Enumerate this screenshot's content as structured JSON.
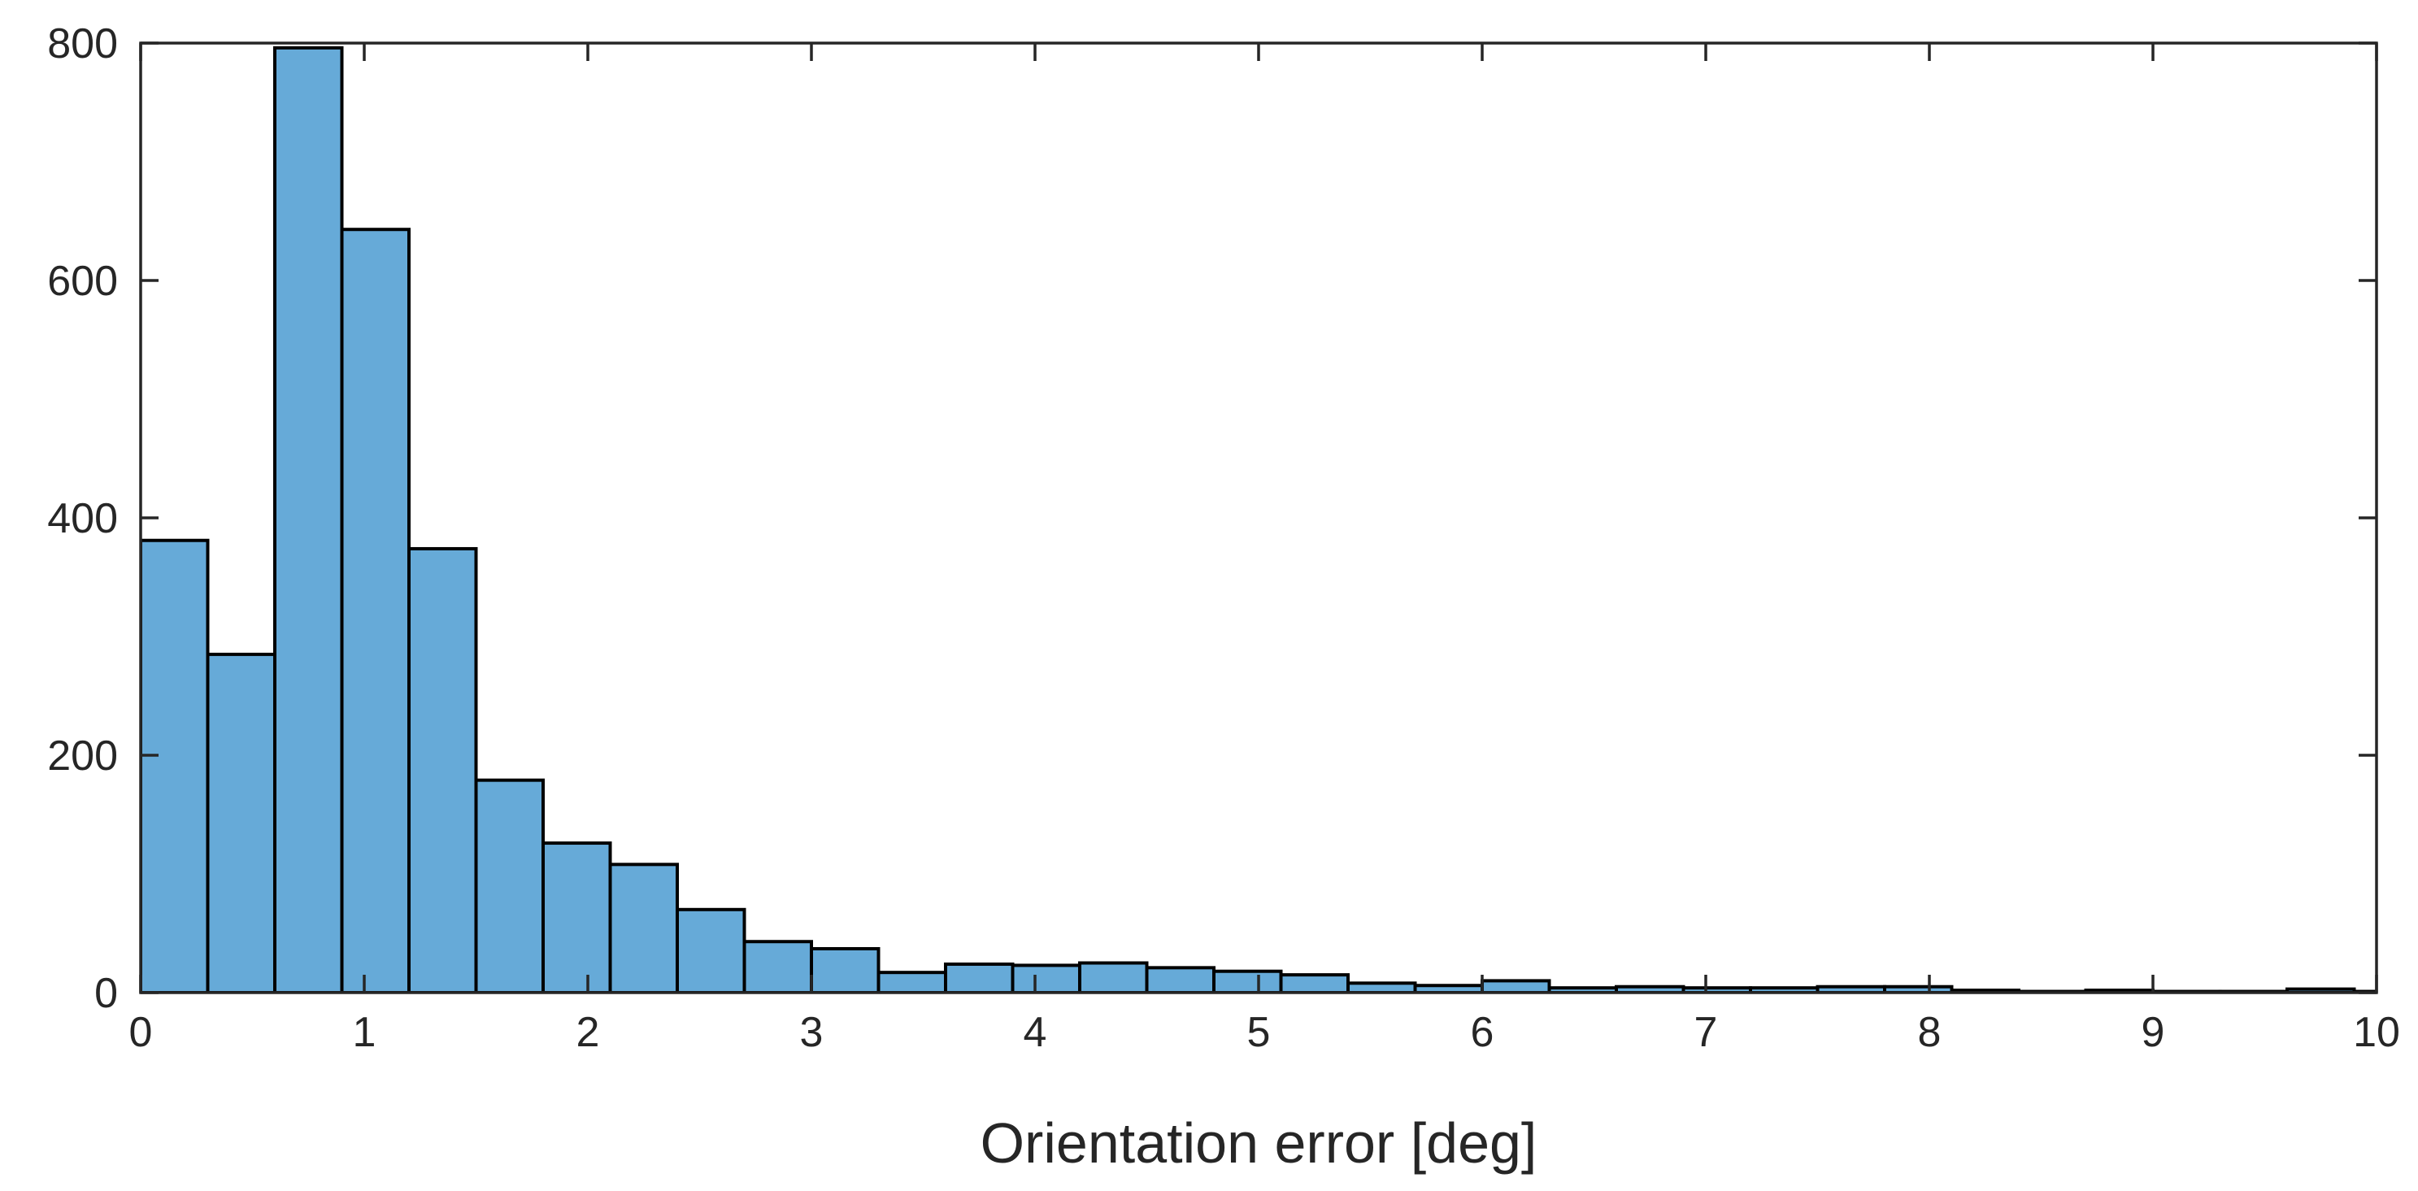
{
  "chart_data": {
    "type": "bar",
    "title": "",
    "xlabel": "Orientation error [deg]",
    "ylabel": "",
    "xlim": [
      0,
      10
    ],
    "ylim": [
      0,
      800
    ],
    "xticks": [
      0,
      1,
      2,
      3,
      4,
      5,
      6,
      7,
      8,
      9,
      10
    ],
    "yticks": [
      0,
      200,
      400,
      600,
      800
    ],
    "grid": false,
    "legend": "none",
    "bar_color": "#66aad8",
    "edge_color": "#000000",
    "bin_edges": [
      0,
      0.3,
      0.6,
      0.9,
      1.2,
      1.5,
      1.8,
      2.1,
      2.4,
      2.7,
      3.0,
      3.3,
      3.6,
      3.9,
      4.2,
      4.5,
      4.8,
      5.1,
      5.4,
      5.7,
      6.0,
      6.3,
      6.6,
      6.9,
      7.2,
      7.5,
      7.8,
      8.1,
      8.4,
      8.7,
      9.0,
      9.3,
      9.6,
      9.9,
      10.2
    ],
    "values": [
      381,
      285,
      796,
      643,
      374,
      179,
      126,
      108,
      70,
      43,
      37,
      17,
      24,
      23,
      25,
      21,
      18,
      15,
      8,
      6,
      10,
      4,
      5,
      4,
      4,
      5,
      5,
      2,
      1,
      2,
      1,
      1,
      3,
      1
    ]
  }
}
